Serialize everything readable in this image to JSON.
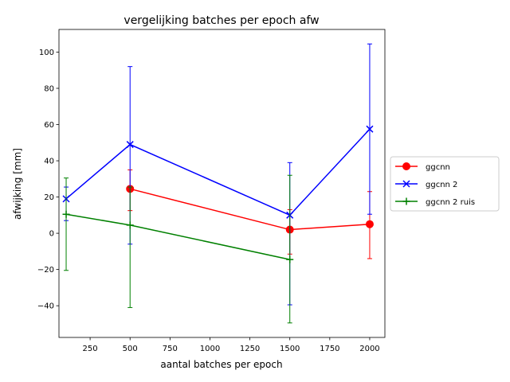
{
  "chart_data": {
    "type": "line",
    "title": "vergelijking batches per epoch afw",
    "xlabel": "aantal batches per epoch",
    "ylabel": "afwijking [mm]",
    "xlim": [
      55,
      2095
    ],
    "ylim": [
      -57.5,
      112.5
    ],
    "xticks": [
      250,
      500,
      750,
      1000,
      1250,
      1500,
      1750,
      2000
    ],
    "yticks": [
      -40,
      -20,
      0,
      20,
      40,
      60,
      80,
      100
    ],
    "grid": false,
    "legend_position": "center-right",
    "error_bars": true,
    "series": [
      {
        "name": "ggcnn",
        "color": "#ff0000",
        "marker": "circle",
        "x": [
          500,
          1500,
          2000
        ],
        "y": [
          24.5,
          2.0,
          5.0
        ],
        "err_low": [
          12.5,
          -11.5,
          -14.0
        ],
        "err_high": [
          35.0,
          13.0,
          23.0
        ]
      },
      {
        "name": "ggcnn 2",
        "color": "#0000ff",
        "marker": "x",
        "x": [
          100,
          500,
          1500,
          2000
        ],
        "y": [
          19.0,
          49.0,
          10.0,
          57.5
        ],
        "err_low": [
          7.0,
          -6.0,
          -39.5,
          10.5
        ],
        "err_high": [
          25.5,
          92.0,
          39.0,
          104.5
        ]
      },
      {
        "name": "ggcnn 2 ruis",
        "color": "#008000",
        "marker": "plus",
        "x": [
          100,
          500,
          1500
        ],
        "y": [
          10.5,
          4.5,
          -14.5
        ],
        "err_low": [
          -20.5,
          -41.0,
          -49.5
        ],
        "err_high": [
          30.5,
          25.5,
          32.0
        ]
      }
    ]
  }
}
